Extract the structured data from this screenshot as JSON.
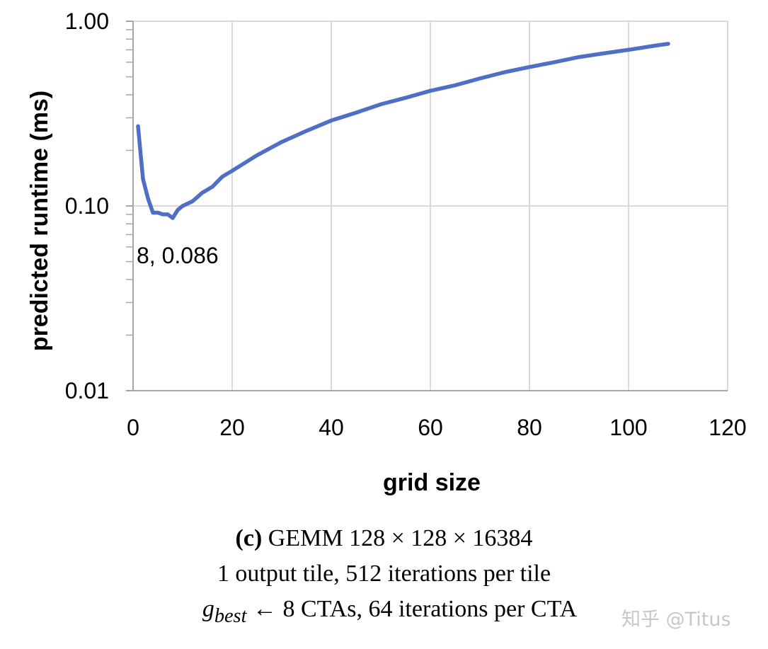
{
  "chart_data": {
    "type": "line",
    "yscale": "log",
    "xlabel": "grid size",
    "ylabel": "predicted runtime (ms)",
    "xlim": [
      0,
      120
    ],
    "ylim": [
      0.01,
      1.0
    ],
    "x_ticks": [
      "0",
      "20",
      "40",
      "60",
      "80",
      "100",
      "120"
    ],
    "y_ticks": [
      "0.01",
      "0.10",
      "1.00"
    ],
    "grid": true,
    "series": [
      {
        "name": "predicted runtime",
        "color": "#4F6FC7",
        "x": [
          1,
          2,
          3,
          4,
          5,
          6,
          7,
          8,
          9,
          10,
          12,
          14,
          16,
          18,
          20,
          25,
          30,
          35,
          40,
          45,
          50,
          55,
          60,
          65,
          70,
          75,
          80,
          85,
          90,
          95,
          100,
          105,
          108
        ],
        "values": [
          0.27,
          0.14,
          0.11,
          0.092,
          0.092,
          0.09,
          0.09,
          0.086,
          0.095,
          0.1,
          0.106,
          0.118,
          0.127,
          0.144,
          0.155,
          0.188,
          0.222,
          0.255,
          0.29,
          0.32,
          0.355,
          0.385,
          0.42,
          0.45,
          0.49,
          0.53,
          0.565,
          0.6,
          0.64,
          0.67,
          0.7,
          0.735,
          0.755
        ]
      }
    ],
    "annotations": [
      {
        "text": "8, 0.086",
        "x": 8,
        "y": 0.086
      }
    ]
  },
  "caption": {
    "label": "(c)",
    "line1": "GEMM 128 × 128 × 16384",
    "line2": "1 output tile, 512 iterations per tile",
    "line3_var": "g",
    "line3_sub": "best",
    "line3_rest": " ← 8 CTAs, 64 iterations per CTA"
  },
  "watermark": "知乎 @Titus"
}
